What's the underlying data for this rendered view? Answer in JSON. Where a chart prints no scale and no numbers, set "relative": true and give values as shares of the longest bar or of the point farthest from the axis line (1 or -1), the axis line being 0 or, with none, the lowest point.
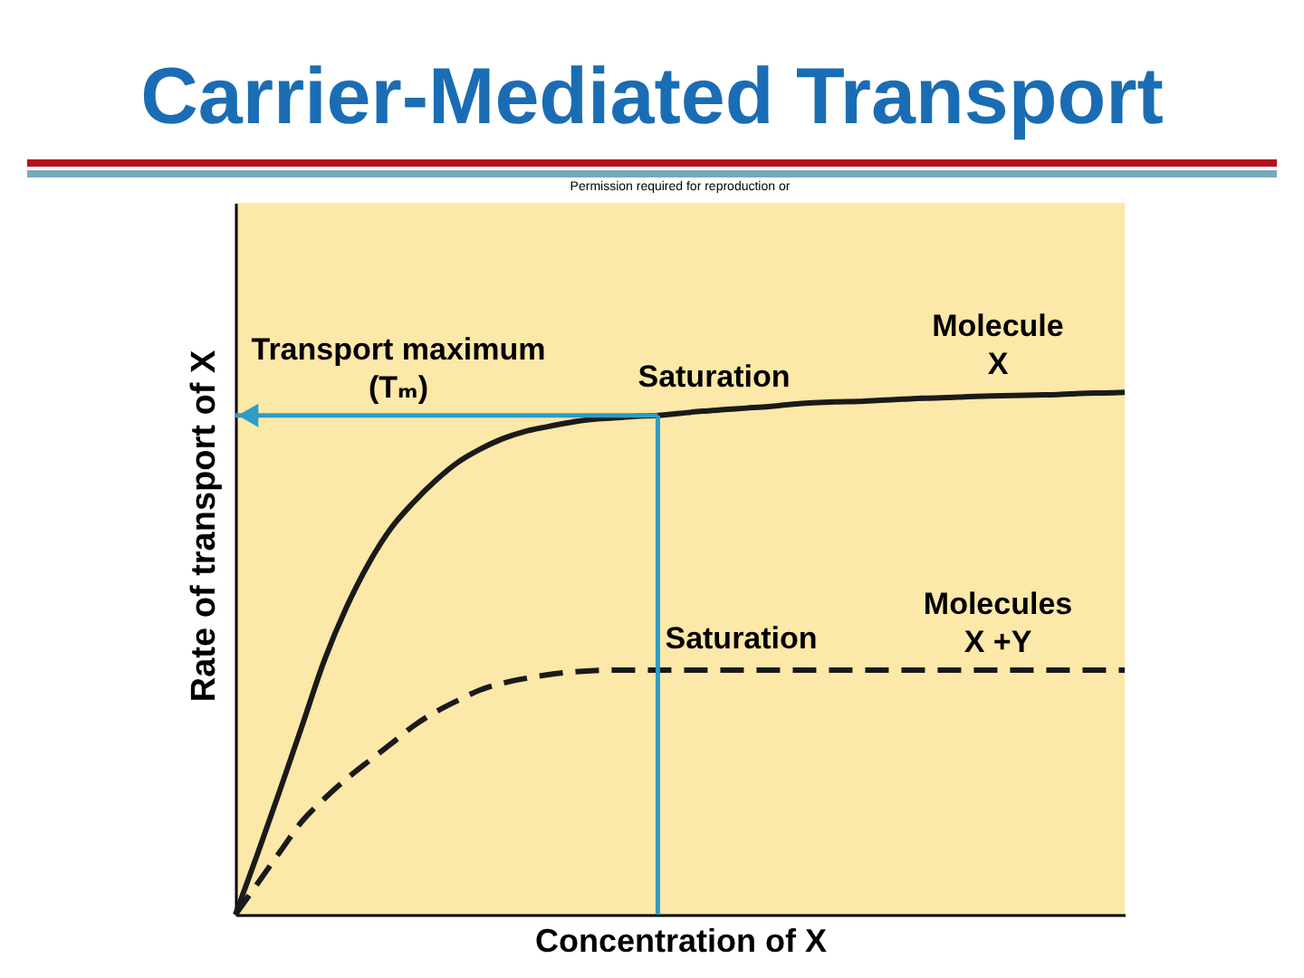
{
  "chart_data": {
    "type": "line",
    "title": "Carrier-Mediated Transport",
    "xlabel": "Concentration of X",
    "ylabel": "Rate of transport of X",
    "categories": [
      null,
      null,
      null,
      null,
      null,
      null,
      null,
      null,
      null,
      null,
      null,
      null,
      null,
      null,
      null,
      null,
      null,
      null,
      null,
      null,
      null,
      null,
      null,
      null,
      null,
      null,
      null,
      null,
      null,
      null,
      null,
      null,
      null,
      null,
      null,
      null,
      null,
      null,
      null,
      null,
      null
    ],
    "relative": true,
    "tick_labels": false,
    "grid": false,
    "legend": false,
    "marker": "none",
    "series": [
      {
        "name": "Molecule X",
        "color": "#1a1a1a",
        "line_style": "solid",
        "values": [
          0,
          0.117,
          0.238,
          0.362,
          0.487,
          0.589,
          0.673,
          0.74,
          0.789,
          0.831,
          0.866,
          0.891,
          0.911,
          0.925,
          0.934,
          0.942,
          0.948,
          0.951,
          0.954,
          0.956,
          0.96,
          0.964,
          0.967,
          0.97,
          0.973,
          0.977,
          0.98,
          0.982,
          0.983,
          0.985,
          0.987,
          0.989,
          0.99,
          0.992,
          0.993,
          0.994,
          0.995,
          0.996,
          0.998,
          0.999,
          1
        ]
      },
      {
        "name": "Molecules X +Y",
        "color": "#1a1a1a",
        "line_style": "dashed",
        "values": [
          0,
          0.06,
          0.12,
          0.179,
          0.222,
          0.26,
          0.294,
          0.327,
          0.361,
          0.388,
          0.41,
          0.43,
          0.443,
          0.452,
          0.459,
          0.464,
          0.467,
          0.468,
          0.468,
          0.468,
          0.468,
          0.468,
          0.468,
          0.468,
          0.468,
          0.468,
          0.468,
          0.468,
          0.468,
          0.468,
          0.468,
          0.468,
          0.468,
          0.468,
          0.468,
          0.468,
          0.468,
          0.468,
          0.468,
          0.468,
          0.468
        ]
      }
    ],
    "ref_lines": [
      {
        "axis": "y",
        "value": 0.956,
        "label": "Transport maximum (Tₘ)",
        "color": "#2d9cc6"
      }
    ],
    "annotations": [
      {
        "text": "Saturation",
        "y": 0.956
      },
      {
        "text": "Saturation",
        "y": 0.468
      },
      "Permission required for reproduction or"
    ]
  }
}
